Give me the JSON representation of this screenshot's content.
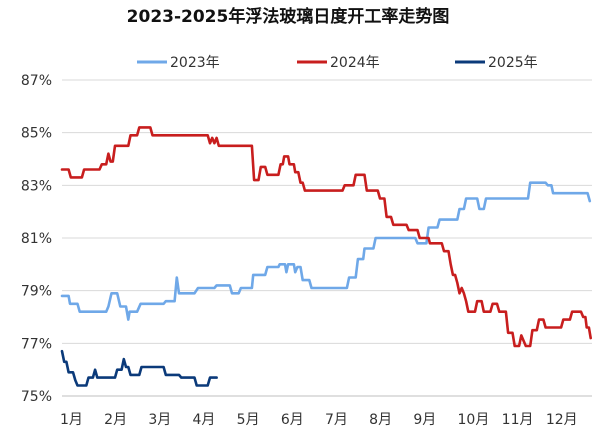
{
  "chart_data": {
    "type": "line",
    "title": "2023-2025年浮法玻璃日度开工率走势图",
    "xlabel": "",
    "ylabel": "",
    "x_ticks": [
      "1月",
      "2月",
      "3月",
      "4月",
      "5月",
      "6月",
      "7月",
      "8月",
      "9月",
      "10月",
      "11月",
      "12月"
    ],
    "y_ticks": [
      "75%",
      "77%",
      "79%",
      "81%",
      "83%",
      "85%",
      "87%"
    ],
    "ylim": [
      75,
      87
    ],
    "xlim": [
      1,
      13
    ],
    "grid": "horizontal",
    "legend_position": "top",
    "series": [
      {
        "name": "2023年",
        "color": "#6fa8e8",
        "points": [
          [
            1.0,
            78.8
          ],
          [
            1.15,
            78.8
          ],
          [
            1.18,
            78.5
          ],
          [
            1.35,
            78.5
          ],
          [
            1.4,
            78.2
          ],
          [
            2.0,
            78.2
          ],
          [
            2.05,
            78.4
          ],
          [
            2.12,
            78.9
          ],
          [
            2.25,
            78.9
          ],
          [
            2.32,
            78.4
          ],
          [
            2.45,
            78.4
          ],
          [
            2.5,
            77.9
          ],
          [
            2.53,
            78.2
          ],
          [
            2.7,
            78.2
          ],
          [
            2.78,
            78.5
          ],
          [
            3.3,
            78.5
          ],
          [
            3.35,
            78.6
          ],
          [
            3.55,
            78.6
          ],
          [
            3.6,
            79.5
          ],
          [
            3.65,
            78.9
          ],
          [
            4.0,
            78.9
          ],
          [
            4.08,
            79.1
          ],
          [
            4.45,
            79.1
          ],
          [
            4.5,
            79.2
          ],
          [
            4.8,
            79.2
          ],
          [
            4.85,
            78.9
          ],
          [
            5.0,
            78.9
          ],
          [
            5.05,
            79.1
          ],
          [
            5.3,
            79.1
          ],
          [
            5.33,
            79.6
          ],
          [
            5.6,
            79.6
          ],
          [
            5.65,
            79.9
          ],
          [
            5.9,
            79.9
          ],
          [
            5.93,
            80.0
          ],
          [
            6.05,
            80.0
          ],
          [
            6.08,
            79.7
          ],
          [
            6.12,
            80.0
          ],
          [
            6.25,
            80.0
          ],
          [
            6.28,
            79.7
          ],
          [
            6.33,
            79.9
          ],
          [
            6.4,
            79.9
          ],
          [
            6.45,
            79.4
          ],
          [
            6.6,
            79.4
          ],
          [
            6.65,
            79.1
          ],
          [
            7.45,
            79.1
          ],
          [
            7.5,
            79.5
          ],
          [
            7.65,
            79.5
          ],
          [
            7.7,
            80.2
          ],
          [
            7.82,
            80.2
          ],
          [
            7.85,
            80.6
          ],
          [
            8.05,
            80.6
          ],
          [
            8.1,
            81.0
          ],
          [
            9.0,
            81.0
          ],
          [
            9.05,
            80.8
          ],
          [
            9.25,
            80.8
          ],
          [
            9.3,
            81.4
          ],
          [
            9.5,
            81.4
          ],
          [
            9.55,
            81.7
          ],
          [
            9.95,
            81.7
          ],
          [
            10.0,
            82.1
          ],
          [
            10.1,
            82.1
          ],
          [
            10.15,
            82.5
          ],
          [
            10.4,
            82.5
          ],
          [
            10.45,
            82.1
          ],
          [
            10.55,
            82.1
          ],
          [
            10.6,
            82.5
          ],
          [
            11.55,
            82.5
          ],
          [
            11.6,
            83.1
          ],
          [
            11.95,
            83.1
          ],
          [
            12.0,
            83.0
          ],
          [
            12.08,
            83.0
          ],
          [
            12.12,
            82.7
          ],
          [
            12.9,
            82.7
          ],
          [
            12.95,
            82.4
          ]
        ]
      },
      {
        "name": "2024年",
        "color": "#c81e1e",
        "points": [
          [
            1.0,
            83.6
          ],
          [
            1.15,
            83.6
          ],
          [
            1.2,
            83.3
          ],
          [
            1.45,
            83.3
          ],
          [
            1.5,
            83.6
          ],
          [
            1.85,
            83.6
          ],
          [
            1.9,
            83.8
          ],
          [
            2.0,
            83.8
          ],
          [
            2.05,
            84.2
          ],
          [
            2.1,
            83.9
          ],
          [
            2.15,
            83.9
          ],
          [
            2.2,
            84.5
          ],
          [
            2.5,
            84.5
          ],
          [
            2.55,
            84.9
          ],
          [
            2.7,
            84.9
          ],
          [
            2.75,
            85.2
          ],
          [
            3.0,
            85.2
          ],
          [
            3.05,
            84.9
          ],
          [
            4.3,
            84.9
          ],
          [
            4.35,
            84.6
          ],
          [
            4.4,
            84.8
          ],
          [
            4.45,
            84.6
          ],
          [
            4.5,
            84.8
          ],
          [
            4.55,
            84.5
          ],
          [
            5.3,
            84.5
          ],
          [
            5.35,
            83.2
          ],
          [
            5.45,
            83.2
          ],
          [
            5.5,
            83.7
          ],
          [
            5.6,
            83.7
          ],
          [
            5.65,
            83.4
          ],
          [
            5.9,
            83.4
          ],
          [
            5.95,
            83.8
          ],
          [
            6.0,
            83.8
          ],
          [
            6.03,
            84.1
          ],
          [
            6.12,
            84.1
          ],
          [
            6.15,
            83.8
          ],
          [
            6.25,
            83.8
          ],
          [
            6.28,
            83.5
          ],
          [
            6.35,
            83.5
          ],
          [
            6.4,
            83.1
          ],
          [
            6.45,
            83.1
          ],
          [
            6.5,
            82.8
          ],
          [
            7.35,
            82.8
          ],
          [
            7.4,
            83.0
          ],
          [
            7.6,
            83.0
          ],
          [
            7.65,
            83.4
          ],
          [
            7.85,
            83.4
          ],
          [
            7.9,
            82.8
          ],
          [
            8.15,
            82.8
          ],
          [
            8.2,
            82.5
          ],
          [
            8.3,
            82.5
          ],
          [
            8.35,
            81.8
          ],
          [
            8.45,
            81.8
          ],
          [
            8.5,
            81.5
          ],
          [
            8.8,
            81.5
          ],
          [
            8.85,
            81.3
          ],
          [
            9.05,
            81.3
          ],
          [
            9.1,
            81.0
          ],
          [
            9.3,
            81.0
          ],
          [
            9.33,
            80.8
          ],
          [
            9.6,
            80.8
          ],
          [
            9.65,
            80.5
          ],
          [
            9.75,
            80.5
          ],
          [
            9.8,
            80.0
          ],
          [
            9.85,
            79.6
          ],
          [
            9.9,
            79.6
          ],
          [
            9.95,
            79.3
          ],
          [
            10.0,
            78.9
          ],
          [
            10.05,
            79.1
          ],
          [
            10.1,
            78.9
          ],
          [
            10.15,
            78.6
          ],
          [
            10.2,
            78.2
          ],
          [
            10.35,
            78.2
          ],
          [
            10.4,
            78.6
          ],
          [
            10.5,
            78.6
          ],
          [
            10.55,
            78.2
          ],
          [
            10.7,
            78.2
          ],
          [
            10.75,
            78.5
          ],
          [
            10.85,
            78.5
          ],
          [
            10.9,
            78.2
          ],
          [
            11.05,
            78.2
          ],
          [
            11.1,
            77.4
          ],
          [
            11.2,
            77.4
          ],
          [
            11.25,
            76.9
          ],
          [
            11.35,
            76.9
          ],
          [
            11.4,
            77.3
          ],
          [
            11.5,
            76.9
          ],
          [
            11.6,
            76.9
          ],
          [
            11.65,
            77.5
          ],
          [
            11.75,
            77.5
          ],
          [
            11.8,
            77.9
          ],
          [
            11.9,
            77.9
          ],
          [
            11.95,
            77.6
          ],
          [
            12.3,
            77.6
          ],
          [
            12.35,
            77.9
          ],
          [
            12.5,
            77.9
          ],
          [
            12.55,
            78.2
          ],
          [
            12.75,
            78.2
          ],
          [
            12.8,
            78.0
          ],
          [
            12.85,
            78.0
          ],
          [
            12.88,
            77.6
          ],
          [
            12.93,
            77.6
          ],
          [
            12.97,
            77.2
          ]
        ]
      },
      {
        "name": "2025年",
        "color": "#0b3a7a",
        "points": [
          [
            1.0,
            76.7
          ],
          [
            1.05,
            76.3
          ],
          [
            1.1,
            76.3
          ],
          [
            1.15,
            75.9
          ],
          [
            1.25,
            75.9
          ],
          [
            1.3,
            75.6
          ],
          [
            1.35,
            75.4
          ],
          [
            1.55,
            75.4
          ],
          [
            1.6,
            75.7
          ],
          [
            1.7,
            75.7
          ],
          [
            1.75,
            76.0
          ],
          [
            1.8,
            75.7
          ],
          [
            2.2,
            75.7
          ],
          [
            2.25,
            76.0
          ],
          [
            2.35,
            76.0
          ],
          [
            2.4,
            76.4
          ],
          [
            2.45,
            76.1
          ],
          [
            2.5,
            76.1
          ],
          [
            2.55,
            75.8
          ],
          [
            2.75,
            75.8
          ],
          [
            2.8,
            76.1
          ],
          [
            3.3,
            76.1
          ],
          [
            3.35,
            75.8
          ],
          [
            3.65,
            75.8
          ],
          [
            3.7,
            75.7
          ],
          [
            4.0,
            75.7
          ],
          [
            4.05,
            75.4
          ],
          [
            4.3,
            75.4
          ],
          [
            4.35,
            75.7
          ],
          [
            4.5,
            75.7
          ]
        ]
      }
    ]
  }
}
